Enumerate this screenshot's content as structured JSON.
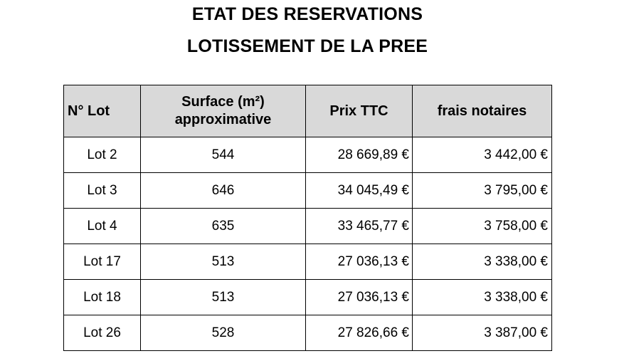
{
  "document": {
    "title_line1": "ETAT DES RESERVATIONS",
    "title_line2": "LOTISSEMENT DE LA PREE"
  },
  "table": {
    "headers": {
      "lot": "N° Lot",
      "surface_line1": "Surface (m²)",
      "surface_line2": "approximative",
      "prix": "Prix TTC",
      "frais": "frais notaires"
    },
    "rows": [
      {
        "lot": "Lot 2",
        "surface": "544",
        "prix": "28 669,89 €",
        "frais": "3 442,00 €"
      },
      {
        "lot": "Lot 3",
        "surface": "646",
        "prix": "34 045,49 €",
        "frais": "3 795,00 €"
      },
      {
        "lot": "Lot 4",
        "surface": "635",
        "prix": "33 465,77 €",
        "frais": "3 758,00 €"
      },
      {
        "lot": "Lot 17",
        "surface": "513",
        "prix": "27 036,13 €",
        "frais": "3 338,00 €"
      },
      {
        "lot": "Lot 18",
        "surface": "513",
        "prix": "27 036,13 €",
        "frais": "3 338,00 €"
      },
      {
        "lot": "Lot 26",
        "surface": "528",
        "prix": "27 826,66 €",
        "frais": "3 387,00 €"
      }
    ],
    "header_background": "#d9d9d9",
    "border_color": "#000000"
  }
}
